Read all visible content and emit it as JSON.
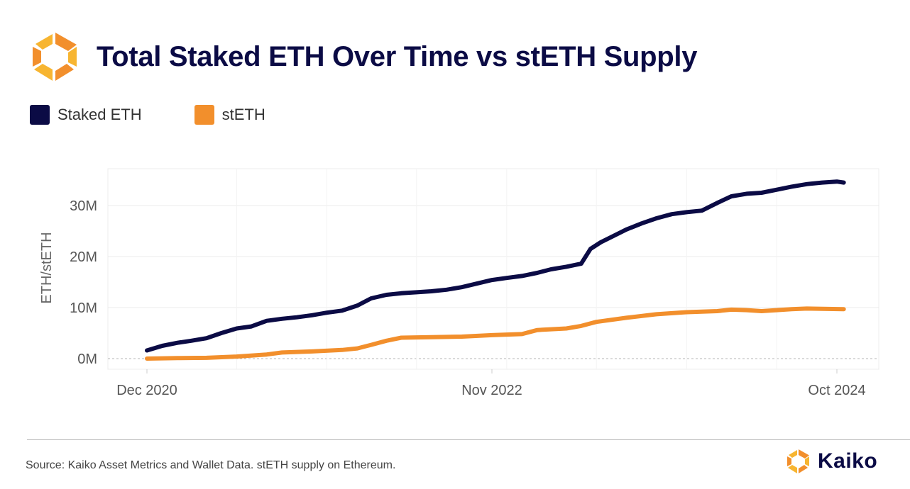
{
  "header": {
    "title": "Total Staked ETH Over Time vs stETH Supply"
  },
  "colors": {
    "staked": "#0b0b45",
    "steth": "#f28f2c",
    "logo_primary": "#f28f2c",
    "logo_secondary": "#f7b531"
  },
  "footer": {
    "source": "Source: Kaiko Asset Metrics and Wallet Data. stETH supply on Ethereum.",
    "brand": "Kaiko"
  },
  "chart_data": {
    "type": "line",
    "title": "Total Staked ETH Over Time vs stETH Supply",
    "xlabel": "",
    "ylabel": "ETH/stETH",
    "x_ticks": [
      "Dec 2020",
      "Nov 2022",
      "Oct 2024"
    ],
    "y_ticks": [
      "0M",
      "10M",
      "20M",
      "30M"
    ],
    "x_range": [
      "2020-12",
      "2024-11"
    ],
    "ylim": [
      0,
      37000000
    ],
    "grid": true,
    "legend_position": "top-left",
    "series": [
      {
        "name": "Staked ETH",
        "color": "#0b0b45",
        "points": [
          [
            "2020-12-01",
            1600000
          ],
          [
            "2021-01-01",
            2500000
          ],
          [
            "2021-02-01",
            3100000
          ],
          [
            "2021-03-01",
            3500000
          ],
          [
            "2021-04-01",
            4000000
          ],
          [
            "2021-05-01",
            5000000
          ],
          [
            "2021-06-01",
            5900000
          ],
          [
            "2021-07-01",
            6300000
          ],
          [
            "2021-08-01",
            7400000
          ],
          [
            "2021-09-01",
            7800000
          ],
          [
            "2021-10-01",
            8100000
          ],
          [
            "2021-11-01",
            8500000
          ],
          [
            "2021-12-01",
            9000000
          ],
          [
            "2022-01-01",
            9400000
          ],
          [
            "2022-02-01",
            10400000
          ],
          [
            "2022-03-01",
            11800000
          ],
          [
            "2022-04-01",
            12500000
          ],
          [
            "2022-05-01",
            12800000
          ],
          [
            "2022-06-01",
            13000000
          ],
          [
            "2022-07-01",
            13200000
          ],
          [
            "2022-08-01",
            13500000
          ],
          [
            "2022-09-01",
            14000000
          ],
          [
            "2022-10-01",
            14700000
          ],
          [
            "2022-11-01",
            15400000
          ],
          [
            "2022-12-01",
            15800000
          ],
          [
            "2023-01-01",
            16200000
          ],
          [
            "2023-02-01",
            16800000
          ],
          [
            "2023-03-01",
            17500000
          ],
          [
            "2023-04-01",
            18000000
          ],
          [
            "2023-05-01",
            18600000
          ],
          [
            "2023-05-20",
            21500000
          ],
          [
            "2023-06-10",
            22800000
          ],
          [
            "2023-07-01",
            23800000
          ],
          [
            "2023-08-01",
            25300000
          ],
          [
            "2023-09-01",
            26500000
          ],
          [
            "2023-10-01",
            27500000
          ],
          [
            "2023-11-01",
            28300000
          ],
          [
            "2023-12-01",
            28700000
          ],
          [
            "2024-01-01",
            29000000
          ],
          [
            "2024-02-01",
            30500000
          ],
          [
            "2024-03-01",
            31800000
          ],
          [
            "2024-04-01",
            32300000
          ],
          [
            "2024-05-01",
            32500000
          ],
          [
            "2024-06-01",
            33100000
          ],
          [
            "2024-07-01",
            33700000
          ],
          [
            "2024-08-01",
            34200000
          ],
          [
            "2024-09-01",
            34500000
          ],
          [
            "2024-10-01",
            34700000
          ],
          [
            "2024-10-15",
            34500000
          ]
        ]
      },
      {
        "name": "stETH",
        "color": "#f28f2c",
        "points": [
          [
            "2020-12-01",
            0
          ],
          [
            "2021-02-01",
            100000
          ],
          [
            "2021-04-01",
            150000
          ],
          [
            "2021-06-01",
            400000
          ],
          [
            "2021-08-01",
            800000
          ],
          [
            "2021-09-01",
            1200000
          ],
          [
            "2021-11-01",
            1400000
          ],
          [
            "2022-01-01",
            1700000
          ],
          [
            "2022-02-01",
            2000000
          ],
          [
            "2022-03-01",
            2700000
          ],
          [
            "2022-04-01",
            3500000
          ],
          [
            "2022-05-01",
            4100000
          ],
          [
            "2022-07-01",
            4200000
          ],
          [
            "2022-09-01",
            4300000
          ],
          [
            "2022-11-01",
            4600000
          ],
          [
            "2023-01-01",
            4800000
          ],
          [
            "2023-02-01",
            5600000
          ],
          [
            "2023-04-01",
            5900000
          ],
          [
            "2023-05-01",
            6400000
          ],
          [
            "2023-06-01",
            7200000
          ],
          [
            "2023-08-01",
            8000000
          ],
          [
            "2023-10-01",
            8700000
          ],
          [
            "2023-12-01",
            9100000
          ],
          [
            "2024-02-01",
            9300000
          ],
          [
            "2024-03-01",
            9600000
          ],
          [
            "2024-04-01",
            9500000
          ],
          [
            "2024-05-01",
            9300000
          ],
          [
            "2024-06-01",
            9500000
          ],
          [
            "2024-07-01",
            9700000
          ],
          [
            "2024-08-01",
            9800000
          ],
          [
            "2024-10-15",
            9700000
          ]
        ]
      }
    ]
  }
}
